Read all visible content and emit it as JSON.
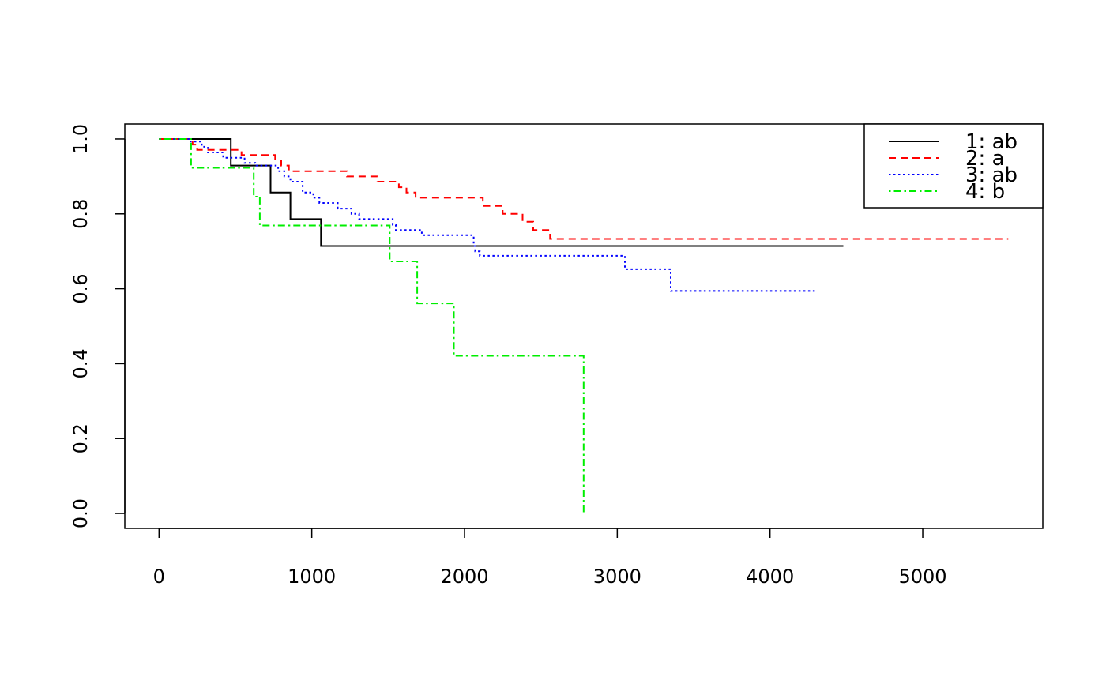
{
  "chart_data": {
    "type": "line",
    "title": "",
    "xlabel": "",
    "ylabel": "",
    "xlim": [
      -224,
      5786
    ],
    "ylim": [
      -0.04,
      1.04
    ],
    "x_ticks": [
      0,
      1000,
      2000,
      3000,
      4000,
      5000
    ],
    "y_ticks": [
      0.0,
      0.2,
      0.4,
      0.6,
      0.8,
      1.0
    ],
    "x_tick_labels": [
      "0",
      "1000",
      "2000",
      "3000",
      "4000",
      "5000"
    ],
    "y_tick_labels": [
      "0.0",
      "0.2",
      "0.4",
      "0.6",
      "0.8",
      "1.0"
    ],
    "grid": false,
    "legend_position": "top-right",
    "series": [
      {
        "name": "1: ab",
        "color": "#000000",
        "dash": "solid",
        "steps": [
          [
            0,
            1.0
          ],
          [
            470,
            0.929
          ],
          [
            730,
            0.857
          ],
          [
            860,
            0.786
          ],
          [
            1060,
            0.714
          ],
          [
            4480,
            0.714
          ]
        ]
      },
      {
        "name": "2: a",
        "color": "#ff0000",
        "dash": "dashed",
        "steps": [
          [
            0,
            1.0
          ],
          [
            220,
            0.985
          ],
          [
            250,
            0.971
          ],
          [
            540,
            0.957
          ],
          [
            760,
            0.943
          ],
          [
            800,
            0.929
          ],
          [
            850,
            0.914
          ],
          [
            1230,
            0.9
          ],
          [
            1430,
            0.886
          ],
          [
            1570,
            0.871
          ],
          [
            1620,
            0.857
          ],
          [
            1680,
            0.843
          ],
          [
            2120,
            0.821
          ],
          [
            2250,
            0.8
          ],
          [
            2380,
            0.779
          ],
          [
            2450,
            0.757
          ],
          [
            2560,
            0.733
          ],
          [
            5560,
            0.733
          ]
        ]
      },
      {
        "name": "3: ab",
        "color": "#0000ff",
        "dash": "dotted",
        "steps": [
          [
            0,
            1.0
          ],
          [
            200,
            0.993
          ],
          [
            280,
            0.979
          ],
          [
            320,
            0.964
          ],
          [
            420,
            0.95
          ],
          [
            560,
            0.936
          ],
          [
            630,
            0.929
          ],
          [
            780,
            0.914
          ],
          [
            820,
            0.9
          ],
          [
            860,
            0.886
          ],
          [
            940,
            0.857
          ],
          [
            1010,
            0.843
          ],
          [
            1050,
            0.829
          ],
          [
            1170,
            0.814
          ],
          [
            1260,
            0.8
          ],
          [
            1310,
            0.786
          ],
          [
            1530,
            0.771
          ],
          [
            1550,
            0.757
          ],
          [
            1720,
            0.743
          ],
          [
            2060,
            0.714
          ],
          [
            2070,
            0.7
          ],
          [
            2100,
            0.688
          ],
          [
            3050,
            0.652
          ],
          [
            3350,
            0.594
          ],
          [
            4310,
            0.594
          ]
        ]
      },
      {
        "name": "4:  b",
        "color": "#00ee00",
        "dash": "dashdot",
        "steps": [
          [
            0,
            1.0
          ],
          [
            210,
            0.923
          ],
          [
            620,
            0.846
          ],
          [
            660,
            0.769
          ],
          [
            1510,
            0.673
          ],
          [
            1690,
            0.561
          ],
          [
            1930,
            0.421
          ],
          [
            2780,
            0.0
          ]
        ]
      }
    ]
  }
}
